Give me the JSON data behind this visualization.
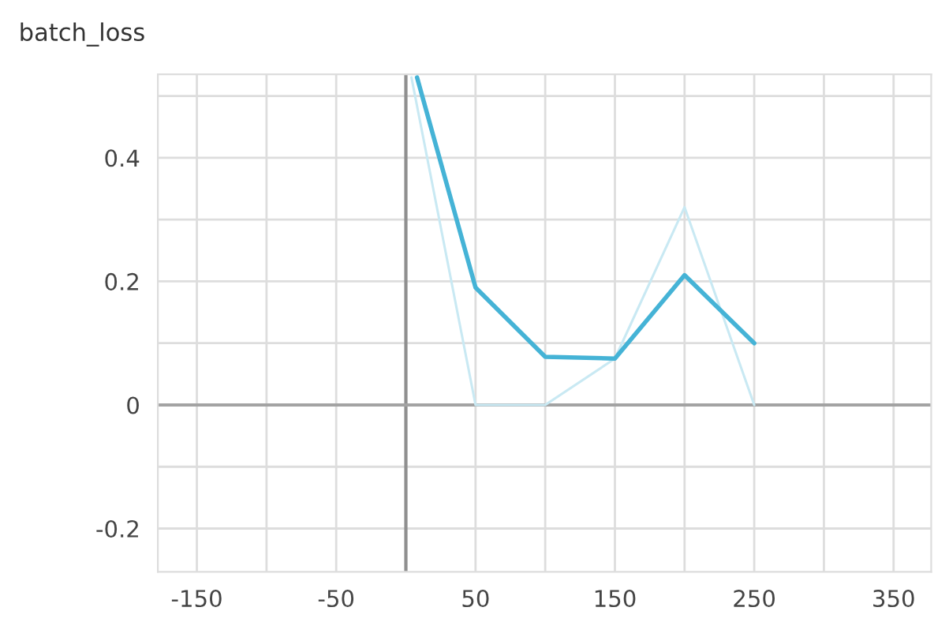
{
  "chart_data": {
    "type": "line",
    "title": "batch_loss",
    "series": [
      {
        "color": "#c9e9f3",
        "x": [
          4,
          50,
          100,
          150,
          200,
          250
        ],
        "values": [
          0.53,
          0,
          0,
          0.075,
          0.32,
          0
        ]
      },
      {
        "color": "#45b3d6",
        "x": [
          8,
          50,
          100,
          150,
          200,
          250
        ],
        "values": [
          0.53,
          0.19,
          0.078,
          0.075,
          0.21,
          0.1
        ]
      }
    ],
    "xlim": [
      -178,
      377
    ],
    "ylim": [
      -0.27,
      0.535
    ],
    "xticks": [
      -150,
      {
        "value": -100,
        "label": null
      },
      -50,
      {
        "value": 0,
        "label": null
      },
      50,
      {
        "value": 100,
        "label": null
      },
      150,
      {
        "value": 200,
        "label": null
      },
      250,
      {
        "value": 300,
        "label": null
      },
      350
    ],
    "yticks": [
      -0.2,
      {
        "value": -0.1,
        "label": null
      },
      0,
      {
        "value": 0.1,
        "label": null
      },
      0.2,
      {
        "value": 0.3,
        "label": null
      },
      0.4,
      {
        "value": 0.5,
        "label": null
      }
    ],
    "ref_lines": [
      {
        "axis": "x",
        "value": 0,
        "color": "#8f8f8f"
      },
      {
        "axis": "y",
        "value": 0,
        "color": "#a3a3a3"
      }
    ],
    "grid": true,
    "marker": "none",
    "line_style": "solid"
  }
}
